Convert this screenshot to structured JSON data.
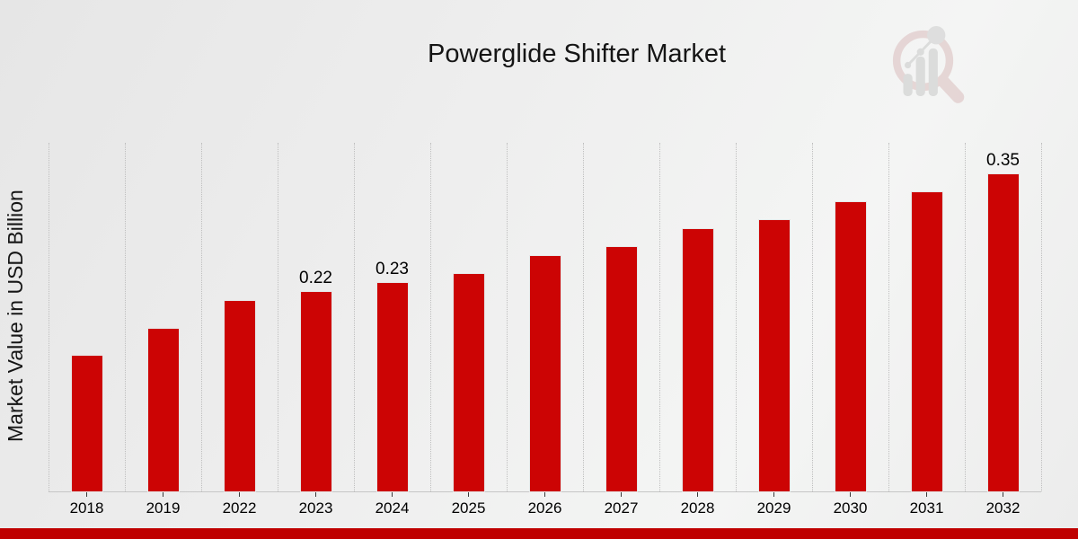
{
  "chart_data": {
    "type": "bar",
    "title": "Powerglide Shifter Market",
    "xlabel": "",
    "ylabel": "Market Value in USD Billion",
    "categories": [
      "2018",
      "2019",
      "2022",
      "2023",
      "2024",
      "2025",
      "2026",
      "2027",
      "2028",
      "2029",
      "2030",
      "2031",
      "2032"
    ],
    "values": [
      0.15,
      0.18,
      0.21,
      0.22,
      0.23,
      0.24,
      0.26,
      0.27,
      0.29,
      0.3,
      0.32,
      0.33,
      0.35
    ],
    "value_labels": [
      "",
      "",
      "",
      "0.22",
      "0.23",
      "",
      "",
      "",
      "",
      "",
      "",
      "",
      "0.35"
    ],
    "ylim": [
      0,
      0.385
    ],
    "grid": "vertical-dotted-at-category-boundaries",
    "legend": "none",
    "bar_color": "#cc0404",
    "accent_band_color": "#bf0000",
    "watermark_icon": "magnifier-bar-chart-logo"
  }
}
